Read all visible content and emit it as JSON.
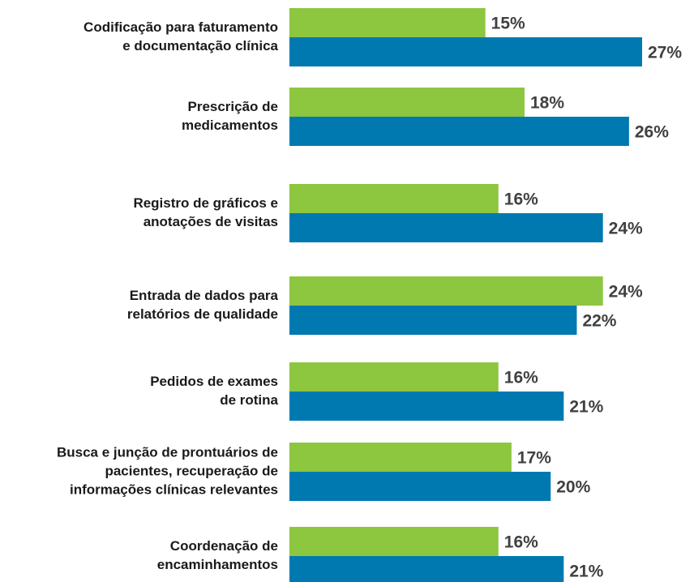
{
  "chart_data": {
    "type": "barh",
    "categories": [
      [
        "Codificação para faturamento",
        "e documentação clínica"
      ],
      [
        "Prescrição de",
        "medicamentos"
      ],
      [
        "Registro de gráficos e",
        "anotações de visitas"
      ],
      [
        "Entrada de dados para",
        "relatórios de qualidade"
      ],
      [
        "Pedidos de exames",
        "de rotina"
      ],
      [
        "Busca e junção de prontuários de",
        "pacientes, recuperação de",
        "informações clínicas relevantes"
      ],
      [
        "Coordenação de",
        "encaminhamentos"
      ]
    ],
    "series": [
      {
        "color": "#8dc63f",
        "values": [
          15,
          18,
          16,
          24,
          16,
          17,
          16
        ],
        "value_labels": [
          "15%",
          "18%",
          "16%",
          "24%",
          "16%",
          "17%",
          "16%"
        ]
      },
      {
        "color": "#0079b0",
        "values": [
          27,
          26,
          24,
          22,
          21,
          20,
          21
        ],
        "value_labels": [
          "27%",
          "26%",
          "24%",
          "22%",
          "21%",
          "20%",
          "21%"
        ]
      }
    ],
    "xlim": [
      0,
      27
    ]
  }
}
